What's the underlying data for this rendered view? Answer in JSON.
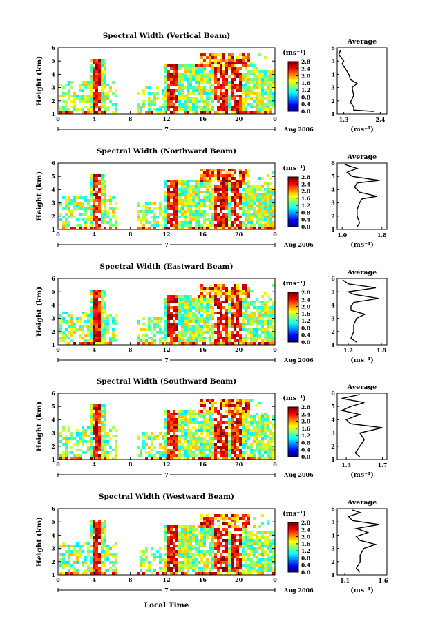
{
  "figure": {
    "xlabel": "Local Time",
    "ylabel": "Height (km)",
    "colorbar_unit": "(ms⁻¹)",
    "average_title": "Average",
    "average_xlabel": "(ms⁻¹)",
    "date_label": "Aug 2006",
    "day_label": "7"
  },
  "chart_data": [
    {
      "type": "heatmap",
      "title": "Spectral Width (Vertical Beam)",
      "ylabel": "Height (km)",
      "xticks": [
        "0",
        "4",
        "8",
        "12",
        "16",
        "20",
        "0"
      ],
      "yticks": [
        "1",
        "2",
        "3",
        "4",
        "5",
        "6"
      ],
      "ylim": [
        1,
        6
      ],
      "colorbar": {
        "ticks": [
          "0.0",
          "0.4",
          "0.8",
          "1.2",
          "1.6",
          "2.0",
          "2.4",
          "2.8"
        ],
        "range": [
          0.0,
          2.8
        ]
      },
      "average_profile": {
        "title": "Average",
        "xlabel": "(ms⁻¹)",
        "xticks": [
          "1.3",
          "2.4"
        ],
        "xlim": [
          1.1,
          2.6
        ],
        "heights": [
          1.2,
          1.3,
          1.5,
          1.9,
          2.4,
          3.0,
          3.3,
          3.6,
          4.0,
          4.4,
          4.8,
          5.0,
          5.3,
          5.5,
          5.8
        ],
        "values": [
          2.2,
          1.6,
          1.6,
          1.5,
          1.6,
          1.55,
          1.7,
          1.5,
          1.45,
          1.35,
          1.25,
          1.3,
          1.2,
          1.15,
          1.2
        ]
      }
    },
    {
      "type": "heatmap",
      "title": "Spectral Width (Northward Beam)",
      "ylabel": "Height (km)",
      "xticks": [
        "0",
        "4",
        "8",
        "12",
        "16",
        "20",
        "0"
      ],
      "yticks": [
        "1",
        "2",
        "3",
        "4",
        "5",
        "6"
      ],
      "ylim": [
        1,
        6
      ],
      "colorbar": {
        "ticks": [
          "0.0",
          "0.4",
          "0.8",
          "1.2",
          "1.6",
          "2.0",
          "2.4",
          "2.8"
        ],
        "range": [
          0.0,
          2.8
        ]
      },
      "average_profile": {
        "title": "Average",
        "xlabel": "(ms⁻¹)",
        "xticks": [
          "1.0",
          "1.8"
        ],
        "xlim": [
          0.9,
          1.9
        ],
        "heights": [
          1.2,
          1.5,
          2.0,
          2.5,
          3.0,
          3.3,
          3.5,
          3.8,
          4.2,
          4.5,
          4.7,
          5.0,
          5.3,
          5.6,
          5.9
        ],
        "values": [
          1.3,
          1.35,
          1.3,
          1.3,
          1.35,
          1.4,
          1.7,
          1.35,
          1.25,
          1.3,
          1.75,
          1.2,
          1.1,
          1.3,
          1.05
        ]
      }
    },
    {
      "type": "heatmap",
      "title": "Spectral Width (Eastward Beam)",
      "ylabel": "Height (km)",
      "xticks": [
        "0",
        "4",
        "8",
        "12",
        "16",
        "20",
        "0"
      ],
      "yticks": [
        "1",
        "2",
        "3",
        "4",
        "5",
        "6"
      ],
      "ylim": [
        1,
        6
      ],
      "colorbar": {
        "ticks": [
          "0.0",
          "0.4",
          "0.8",
          "1.2",
          "1.6",
          "2.0",
          "2.4",
          "2.8"
        ],
        "range": [
          0.0,
          2.8
        ]
      },
      "average_profile": {
        "title": "Average",
        "xlabel": "(ms⁻¹)",
        "xticks": [
          "1.2",
          "1.8"
        ],
        "xlim": [
          1.0,
          1.9
        ],
        "heights": [
          1.2,
          1.5,
          2.0,
          2.5,
          3.0,
          3.3,
          3.6,
          3.9,
          4.2,
          4.5,
          4.8,
          5.0,
          5.3,
          5.6,
          5.9
        ],
        "values": [
          1.35,
          1.25,
          1.3,
          1.3,
          1.35,
          1.5,
          1.25,
          1.25,
          1.3,
          1.75,
          1.3,
          1.2,
          1.7,
          1.2,
          1.1
        ]
      }
    },
    {
      "type": "heatmap",
      "title": "Spectral Width (Southward Beam)",
      "ylabel": "Height (km)",
      "xticks": [
        "0",
        "4",
        "8",
        "12",
        "16",
        "20",
        "0"
      ],
      "yticks": [
        "1",
        "2",
        "3",
        "4",
        "5",
        "6"
      ],
      "ylim": [
        1,
        6
      ],
      "colorbar": {
        "ticks": [
          "0.0",
          "0.4",
          "0.8",
          "1.2",
          "1.6",
          "2.0",
          "2.4",
          "2.8"
        ],
        "range": [
          0.0,
          2.8
        ]
      },
      "average_profile": {
        "title": "Average",
        "xlabel": "(ms⁻¹)",
        "xticks": [
          "1.3",
          "1.7"
        ],
        "xlim": [
          1.2,
          1.75
        ],
        "heights": [
          1.2,
          1.5,
          2.0,
          2.5,
          3.0,
          3.4,
          3.7,
          4.0,
          4.4,
          4.7,
          5.0,
          5.3,
          5.6,
          5.9
        ],
        "values": [
          1.45,
          1.4,
          1.45,
          1.5,
          1.45,
          1.7,
          1.35,
          1.3,
          1.45,
          1.25,
          1.35,
          1.5,
          1.25,
          1.45
        ]
      }
    },
    {
      "type": "heatmap",
      "title": "Spectral Width (Westward Beam)",
      "ylabel": "Height (km)",
      "xticks": [
        "0",
        "4",
        "8",
        "12",
        "16",
        "20",
        "0"
      ],
      "yticks": [
        "1",
        "2",
        "3",
        "4",
        "5",
        "6"
      ],
      "ylim": [
        1,
        6
      ],
      "colorbar": {
        "ticks": [
          "0.0",
          "0.4",
          "0.8",
          "1.2",
          "1.6",
          "2.0",
          "2.4",
          "2.8"
        ],
        "range": [
          0.0,
          2.8
        ]
      },
      "average_profile": {
        "title": "Average",
        "xlabel": "(ms⁻¹)",
        "xticks": [
          "1.1",
          "1.6"
        ],
        "xlim": [
          1.0,
          1.65
        ],
        "heights": [
          1.2,
          1.5,
          2.0,
          2.5,
          3.0,
          3.3,
          3.6,
          3.9,
          4.2,
          4.5,
          4.8,
          5.1,
          5.4,
          5.7,
          5.9
        ],
        "values": [
          1.3,
          1.25,
          1.3,
          1.3,
          1.35,
          1.5,
          1.3,
          1.25,
          1.4,
          1.25,
          1.55,
          1.2,
          1.15,
          1.3,
          1.2
        ]
      }
    }
  ]
}
